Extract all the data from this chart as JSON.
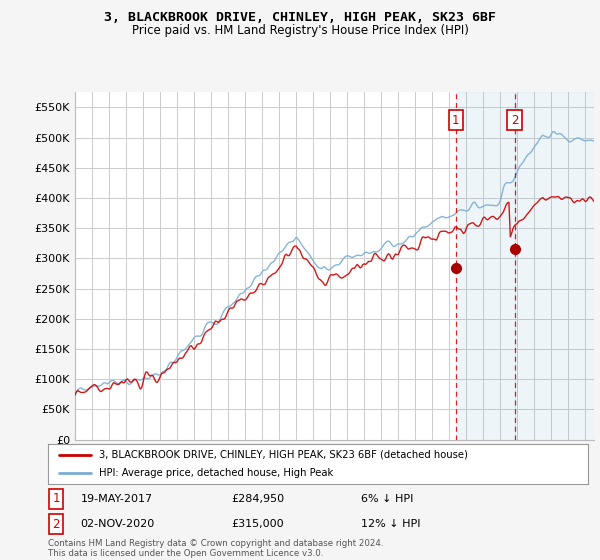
{
  "title": "3, BLACKBROOK DRIVE, CHINLEY, HIGH PEAK, SK23 6BF",
  "subtitle": "Price paid vs. HM Land Registry's House Price Index (HPI)",
  "xlim_start": 1995.0,
  "xlim_end": 2025.5,
  "ylim": [
    0,
    575000
  ],
  "yticks": [
    0,
    50000,
    100000,
    150000,
    200000,
    250000,
    300000,
    350000,
    400000,
    450000,
    500000,
    550000
  ],
  "ytick_labels": [
    "£0",
    "£50K",
    "£100K",
    "£150K",
    "£200K",
    "£250K",
    "£300K",
    "£350K",
    "£400K",
    "£450K",
    "£500K",
    "£550K"
  ],
  "hpi_color": "#7aadd4",
  "price_color": "#cc0000",
  "vline_color": "#cc0000",
  "marker1_x": 2017.38,
  "marker1_y": 284950,
  "marker2_x": 2020.84,
  "marker2_y": 315000,
  "annotation1_date": "19-MAY-2017",
  "annotation1_price": "£284,950",
  "annotation1_hpi": "6% ↓ HPI",
  "annotation2_date": "02-NOV-2020",
  "annotation2_price": "£315,000",
  "annotation2_hpi": "12% ↓ HPI",
  "legend_line1": "3, BLACKBROOK DRIVE, CHINLEY, HIGH PEAK, SK23 6BF (detached house)",
  "legend_line2": "HPI: Average price, detached house, High Peak",
  "footnote": "Contains HM Land Registry data © Crown copyright and database right 2024.\nThis data is licensed under the Open Government Licence v3.0.",
  "bg_color": "#f5f5f5",
  "plot_bg_color": "#ffffff",
  "grid_color": "#cccccc"
}
